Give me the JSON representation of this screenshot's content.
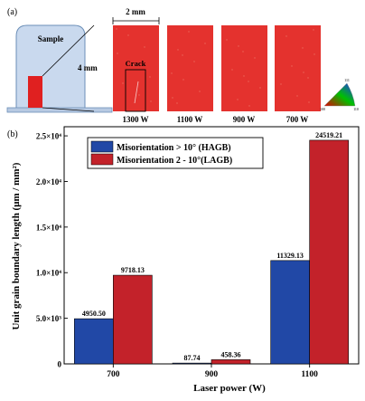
{
  "panel_a": {
    "label": "(a)",
    "sample_label": "Sample",
    "scale_width": "2 mm",
    "scale_height": "4 mm",
    "crack_label": "Crack",
    "micrographs": [
      "1300 W",
      "1100 W",
      "900 W",
      "700 W"
    ],
    "ipf_labels": [
      "111",
      "100",
      "110"
    ],
    "colors": {
      "map_red": "#e4322e",
      "holder_fill": "#c9d9ee",
      "holder_stroke": "#6c8fb8",
      "sample_red": "#e02020"
    }
  },
  "panel_b": {
    "label": "(b)"
  },
  "chart_data": {
    "type": "bar",
    "xlabel": "Laser power (W)",
    "ylabel": "Unit grain boundary length (μm / mm²)",
    "categories": [
      "700",
      "900",
      "1100"
    ],
    "ylim": [
      0,
      26000
    ],
    "yticks": [
      0,
      5000,
      10000,
      15000,
      20000,
      25000
    ],
    "ytick_labels": [
      "0",
      "5.0×10³",
      "1.0×10⁴",
      "1.5×10⁴",
      "2.0×10⁴",
      "2.5×10⁴"
    ],
    "legend_position": "top-left",
    "series": [
      {
        "name": "Misorientation > 10° (HAGB)",
        "color": "#2148a6",
        "values": [
          4950.5,
          87.74,
          11329.13
        ],
        "data_labels": [
          "4950.50",
          "87.74",
          "11329.13"
        ]
      },
      {
        "name": "Misorientation 2 - 10°(LAGB)",
        "color": "#c3222a",
        "values": [
          9718.13,
          458.36,
          24519.21
        ],
        "data_labels": [
          "9718.13",
          "458.36",
          "24519.21"
        ]
      }
    ]
  }
}
